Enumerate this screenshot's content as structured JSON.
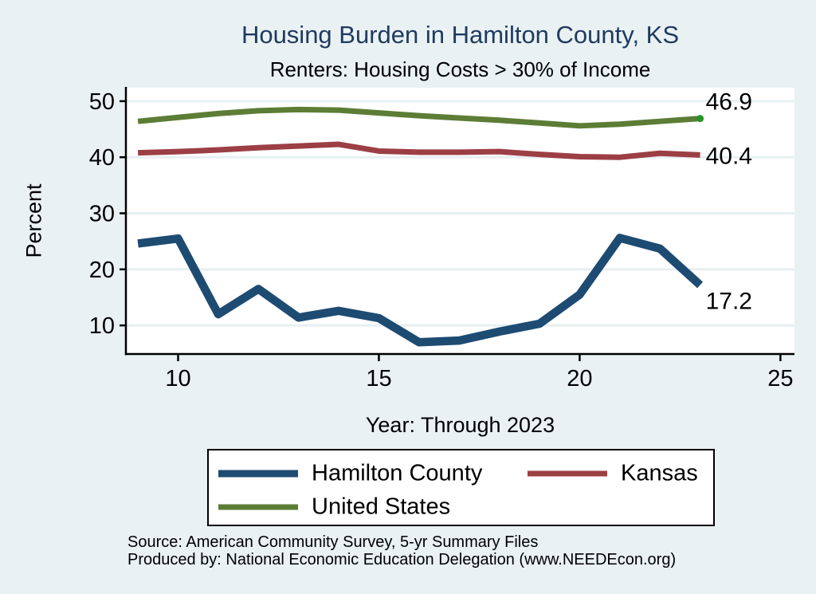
{
  "page": {
    "background": "#e9f1f3"
  },
  "title": {
    "text": "Housing Burden in Hamilton County, KS",
    "color": "#1f3a5f"
  },
  "subtitle": {
    "text": "Renters: Housing Costs > 30% of Income"
  },
  "axis_titles": {
    "y": "Percent",
    "x": "Year: Through 2023"
  },
  "legend": {
    "items": [
      {
        "label": "Hamilton County",
        "color": "#1e4b72",
        "thickness": 9
      },
      {
        "label": "Kansas",
        "color": "#9c3f45",
        "thickness": 7
      },
      {
        "label": "United States",
        "color": "#5c7d35",
        "thickness": 7
      }
    ]
  },
  "footer": {
    "source": "Source: American Community Survey, 5-yr Summary Files",
    "produced_by": "Produced by: National Economic Education Delegation (www.NEEDEcon.org)"
  },
  "colors": {
    "plot_background": "#ffffff",
    "gridline": "#e7eff2",
    "axis": "#000000",
    "tick_label": "#000000",
    "end_label": "#000000"
  },
  "chart_data": {
    "type": "line",
    "title": "Housing Burden in Hamilton County, KS",
    "subtitle": "Renters: Housing Costs > 30% of Income",
    "xlabel": "Year: Through 2023",
    "ylabel": "Percent",
    "x": [
      9,
      10,
      11,
      12,
      13,
      14,
      15,
      16,
      17,
      18,
      19,
      20,
      21,
      22,
      23
    ],
    "xticks": [
      10,
      15,
      20,
      25
    ],
    "yticks": [
      10,
      20,
      30,
      40,
      50
    ],
    "xlim": [
      8.7,
      25.35
    ],
    "ylim": [
      4.9,
      52.4
    ],
    "grid": "horizontal",
    "legend_position": "bottom",
    "series": [
      {
        "name": "Hamilton County",
        "color": "#1e4b72",
        "line_width": 10.5,
        "values": [
          24.6,
          25.5,
          12.0,
          16.5,
          11.4,
          12.6,
          11.3,
          7.0,
          7.3,
          8.9,
          10.3,
          15.5,
          25.6,
          23.7,
          17.2
        ],
        "end_label": "17.2"
      },
      {
        "name": "Kansas",
        "color": "#9c3f45",
        "line_width": 7,
        "values": [
          40.8,
          41.0,
          41.3,
          41.7,
          42.0,
          42.3,
          41.1,
          40.9,
          40.9,
          41.0,
          40.5,
          40.1,
          40.0,
          40.7,
          40.4
        ],
        "end_label": "40.4"
      },
      {
        "name": "United States",
        "color": "#5c7d35",
        "line_width": 7,
        "values": [
          46.4,
          47.1,
          47.8,
          48.3,
          48.5,
          48.4,
          47.9,
          47.4,
          47.0,
          46.6,
          46.1,
          45.6,
          45.9,
          46.4,
          46.9
        ],
        "end_label": "46.9",
        "end_marker_color": "#23962a"
      }
    ]
  }
}
